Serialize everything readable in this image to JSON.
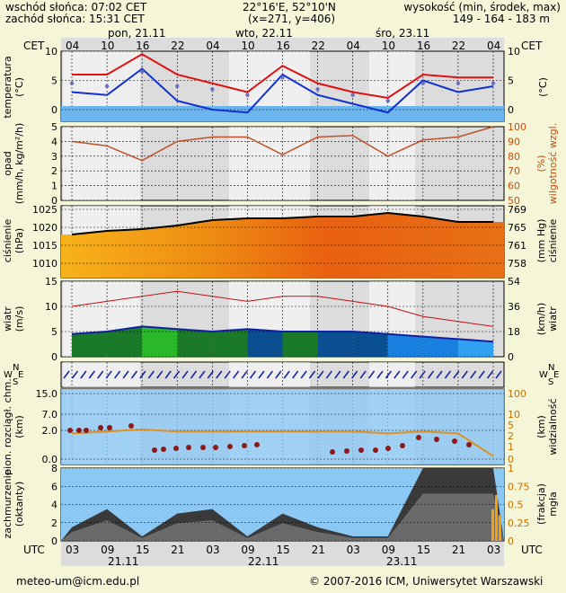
{
  "header": {
    "sunrise": "wschód słońca: 07:02 CET",
    "sunset": "zachód słońca: 15:31 CET",
    "coords": "22°16'E, 52°10'N",
    "grid": "(x=271, y=406)",
    "elev_label": "wysokość (min, środek, max)",
    "elev_values": "149 - 164 - 183 m"
  },
  "time": {
    "cet_label": "CET",
    "utc_label": "UTC",
    "cet_ticks": [
      "04",
      "10",
      "16",
      "22",
      "04",
      "10",
      "16",
      "22",
      "04",
      "10",
      "16",
      "22",
      "04"
    ],
    "utc_ticks": [
      "03",
      "09",
      "15",
      "21",
      "03",
      "09",
      "15",
      "21",
      "03",
      "09",
      "15",
      "21",
      "03"
    ],
    "day_labels": [
      "pon, 21.11",
      "wto, 22.11",
      "śro, 23.11"
    ],
    "utc_dates": [
      "21.11",
      "22.11",
      "23.11"
    ]
  },
  "panels": {
    "temperature": {
      "left": "temperatura\n(°C)",
      "right": "(°C)",
      "left_ticks": [
        "10",
        "5",
        "0"
      ],
      "right_ticks": [
        "10",
        "5",
        "0"
      ]
    },
    "precip": {
      "left": "opad\n(mm/h, kg/m²/h)",
      "right": "(%)\nwilgotność wzgl.",
      "left_ticks": [
        "5",
        "4",
        "3",
        "2",
        "1",
        "0"
      ],
      "right_ticks": [
        "100",
        "90",
        "80",
        "70",
        "60",
        "50"
      ]
    },
    "pressure": {
      "left": "ciśnienie\n(hPa)",
      "right": "(mm Hg)\nciśnienie",
      "left_ticks": [
        "1025",
        "1020",
        "1015",
        "1010"
      ],
      "right_ticks": [
        "769",
        "765",
        "761",
        "758"
      ]
    },
    "wind": {
      "left": "wiatr\n(m/s)",
      "right": "(km/h)\nwiatr",
      "left_ticks": [
        "15",
        "10",
        "5",
        "0"
      ],
      "right_ticks": [
        "54",
        "36",
        "18",
        "0"
      ]
    },
    "direction": {
      "letters_left": [
        "N",
        "W",
        "E",
        "S"
      ],
      "letters_right": [
        "N",
        "W",
        "E",
        "S"
      ]
    },
    "cloudbase": {
      "left": "pion. rozciągł. chm.\n(km)",
      "right": "(km)\nwidzialność",
      "left_ticks": [
        "15.0",
        "7.0",
        "2.0",
        "0.0"
      ],
      "right_ticks": [
        "100",
        "10",
        "5",
        "2",
        "1",
        "0"
      ]
    },
    "cloudcover": {
      "left": "zachmurzenie\n(oktanty)",
      "right": "(frakcja)\nmgła",
      "left_ticks": [
        "8",
        "6",
        "4",
        "2",
        "0"
      ],
      "right_ticks": [
        "1",
        "0.75",
        "0.5",
        "0.25",
        "0"
      ]
    }
  },
  "footer": {
    "email": "meteo-um@icm.edu.pl",
    "copyright": "© 2007-2016 ICM, Uniwersytet Warszawski"
  },
  "chart_data": [
    {
      "type": "line",
      "title": "temperatura",
      "ylabel": "(°C)",
      "ylim": [
        -2,
        10
      ],
      "x": [
        "03",
        "09",
        "15",
        "21",
        "03",
        "09",
        "15",
        "21",
        "03",
        "09",
        "15",
        "21",
        "03"
      ],
      "series": [
        {
          "values": [
            6,
            6,
            9.5,
            6,
            4.5,
            3,
            7.5,
            4.5,
            3,
            2,
            6,
            5.5,
            5.5
          ]
        },
        {
          "values": [
            3,
            2.5,
            7,
            1.5,
            0,
            -0.5,
            6,
            2.5,
            1,
            -0.5,
            5,
            3,
            4
          ]
        },
        {
          "values": [
            4.5,
            4,
            6.5,
            4,
            3.5,
            2.5,
            5.5,
            3.5,
            2.5,
            1.5,
            4.5,
            4.5,
            4.5
          ]
        }
      ]
    },
    {
      "type": "line",
      "title": "wilgotność wzgl.",
      "ylabel": "(%)",
      "ylim": [
        50,
        100
      ],
      "x": [
        "03",
        "09",
        "15",
        "21",
        "03",
        "09",
        "15",
        "21",
        "03",
        "09",
        "15",
        "21",
        "03"
      ],
      "series": [
        {
          "values": [
            90,
            87,
            77,
            90,
            93,
            93,
            81,
            93,
            94,
            80,
            91,
            93,
            100
          ]
        }
      ]
    },
    {
      "type": "area",
      "title": "ciśnienie",
      "ylabel": "(hPa)",
      "ylim": [
        1006,
        1026
      ],
      "x": [
        "03",
        "09",
        "15",
        "21",
        "03",
        "09",
        "15",
        "21",
        "03",
        "09",
        "15",
        "21",
        "03"
      ],
      "series": [
        {
          "values": [
            1018,
            1019,
            1019.5,
            1020.5,
            1022,
            1022.5,
            1022.5,
            1023,
            1023,
            1024,
            1023,
            1021.5,
            1021.5
          ]
        }
      ]
    },
    {
      "type": "line",
      "title": "wiatr",
      "ylabel": "(m/s)",
      "ylim": [
        0,
        15
      ],
      "x": [
        "03",
        "09",
        "15",
        "21",
        "03",
        "09",
        "15",
        "21",
        "03",
        "09",
        "15",
        "21",
        "03"
      ],
      "series": [
        {
          "values": [
            10,
            11,
            12,
            13,
            12,
            11,
            12,
            12,
            11,
            10,
            8,
            7,
            6
          ]
        },
        {
          "values": [
            4.5,
            5,
            6,
            5.5,
            5,
            5.5,
            5,
            5,
            5,
            4.5,
            4,
            3.5,
            3
          ]
        }
      ]
    },
    {
      "type": "line",
      "title": "widzialność",
      "ylabel": "(km)",
      "ylim": [
        0,
        100
      ],
      "x": [
        "03",
        "09",
        "15",
        "21",
        "03",
        "09",
        "15",
        "21",
        "03",
        "09",
        "15",
        "21",
        "03"
      ],
      "series": [
        {
          "values": [
            28,
            30,
            32,
            30,
            30,
            30,
            30,
            30,
            30,
            28,
            30,
            28,
            5
          ]
        }
      ]
    },
    {
      "type": "area",
      "title": "zachmurzenie",
      "ylabel": "(oktanty)",
      "ylim": [
        0,
        8
      ],
      "x": [
        "03",
        "09",
        "15",
        "21",
        "03",
        "09",
        "15",
        "21",
        "03",
        "09",
        "15",
        "21",
        "03"
      ],
      "series": [
        {
          "values": [
            1.5,
            3.5,
            0.5,
            3,
            3.5,
            0.5,
            3,
            1.5,
            0.5,
            0.5,
            8,
            8,
            8
          ]
        }
      ]
    }
  ]
}
